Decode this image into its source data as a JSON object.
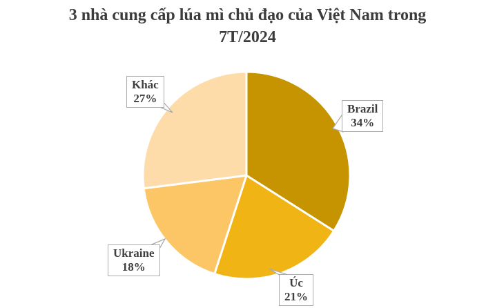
{
  "title": {
    "line1": "3 nhà cung cấp lúa mì chủ đạo của Việt Nam trong",
    "line2": "7T/2024"
  },
  "chart_data": {
    "type": "pie",
    "title": "3 nhà cung cấp lúa mì chủ đạo của Việt Nam trong 7T/2024",
    "start_angle_deg": -90,
    "direction": "clockwise",
    "total": 100,
    "slices": [
      {
        "label": "Brazil",
        "value": 34,
        "pct_label": "34%",
        "color": "#c69400"
      },
      {
        "label": "Úc",
        "value": 21,
        "pct_label": "21%",
        "color": "#f0b414"
      },
      {
        "label": "Ukraine",
        "value": 18,
        "pct_label": "18%",
        "color": "#fcc667"
      },
      {
        "label": "Khác",
        "value": 27,
        "pct_label": "27%",
        "color": "#fddcaa"
      }
    ],
    "separator_color": "#ffffff",
    "legend": "none",
    "label_style": {
      "background": "#ffffff",
      "border_color": "#ababab",
      "text_color": "#3e3e3e"
    },
    "title_color": "#3c3c3c"
  }
}
